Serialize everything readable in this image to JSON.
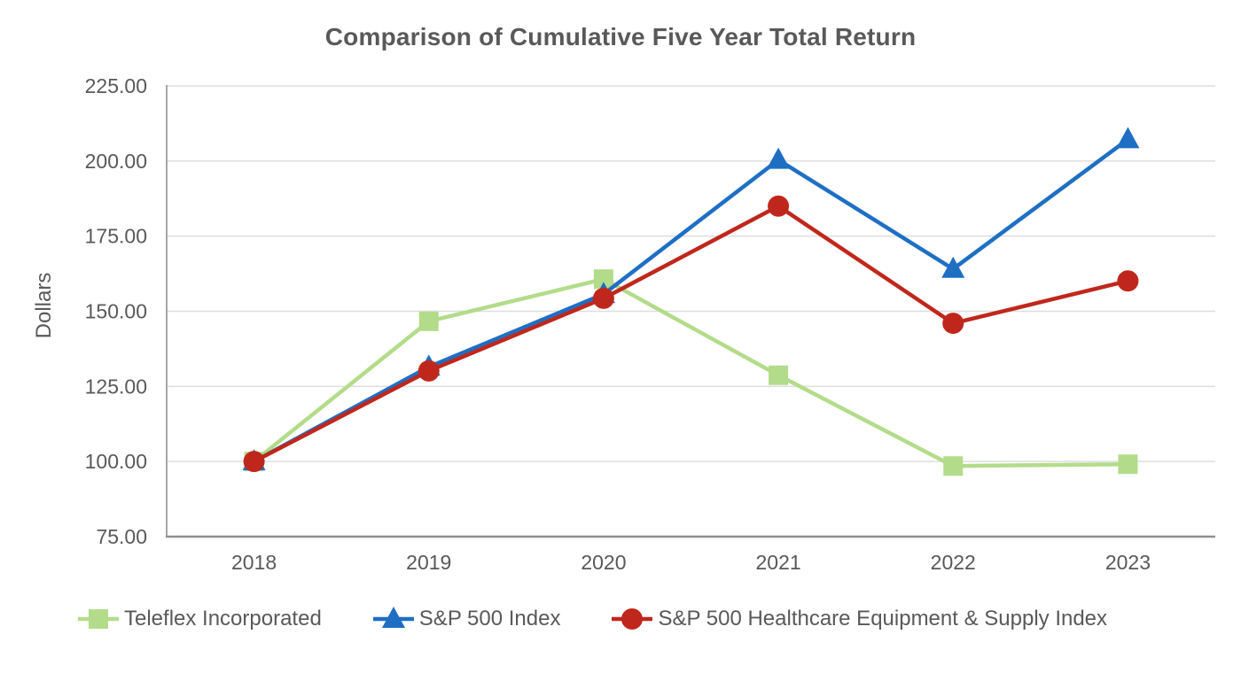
{
  "title": "Comparison of Cumulative Five Year Total Return",
  "colors": {
    "text": "#595959",
    "gridline": "#dedede",
    "axis_left": "#a6a6a6",
    "axis_bottom": "#8f8f8f",
    "background": "#ffffff",
    "teleflex_green": "#b3dc8a",
    "sp500_blue": "#1e6fc4",
    "healthcare_red": "#c0271c"
  },
  "chart_data": {
    "type": "line",
    "title": "Comparison of Cumulative Five Year Total Return",
    "xlabel": "",
    "ylabel": "Dollars",
    "categories": [
      "2018",
      "2019",
      "2020",
      "2021",
      "2022",
      "2023"
    ],
    "series": [
      {
        "name": "Teleflex Incorporated",
        "marker": "square",
        "color": "#b3dc8a",
        "values": [
          100.0,
          146.66,
          160.7,
          128.71,
          98.5,
          99.1
        ]
      },
      {
        "name": "S&P 500 Index",
        "marker": "triangle",
        "color": "#1e6fc4",
        "values": [
          100.0,
          131.49,
          155.68,
          200.37,
          164.08,
          207.21
        ]
      },
      {
        "name": "S&P 500 Healthcare Equipment & Supply Index",
        "marker": "circle",
        "color": "#c0271c",
        "values": [
          100.0,
          130.15,
          154.3,
          185.0,
          146.0,
          160.1
        ]
      }
    ],
    "ylim": [
      75,
      225
    ],
    "y_ticks": [
      225,
      200,
      175,
      150,
      125,
      100,
      75
    ],
    "y_tick_labels": [
      "225.00",
      "200.00",
      "175.00",
      "150.00",
      "125.00",
      "100.00",
      "75.00"
    ],
    "grid": true,
    "legend_position": "bottom"
  }
}
